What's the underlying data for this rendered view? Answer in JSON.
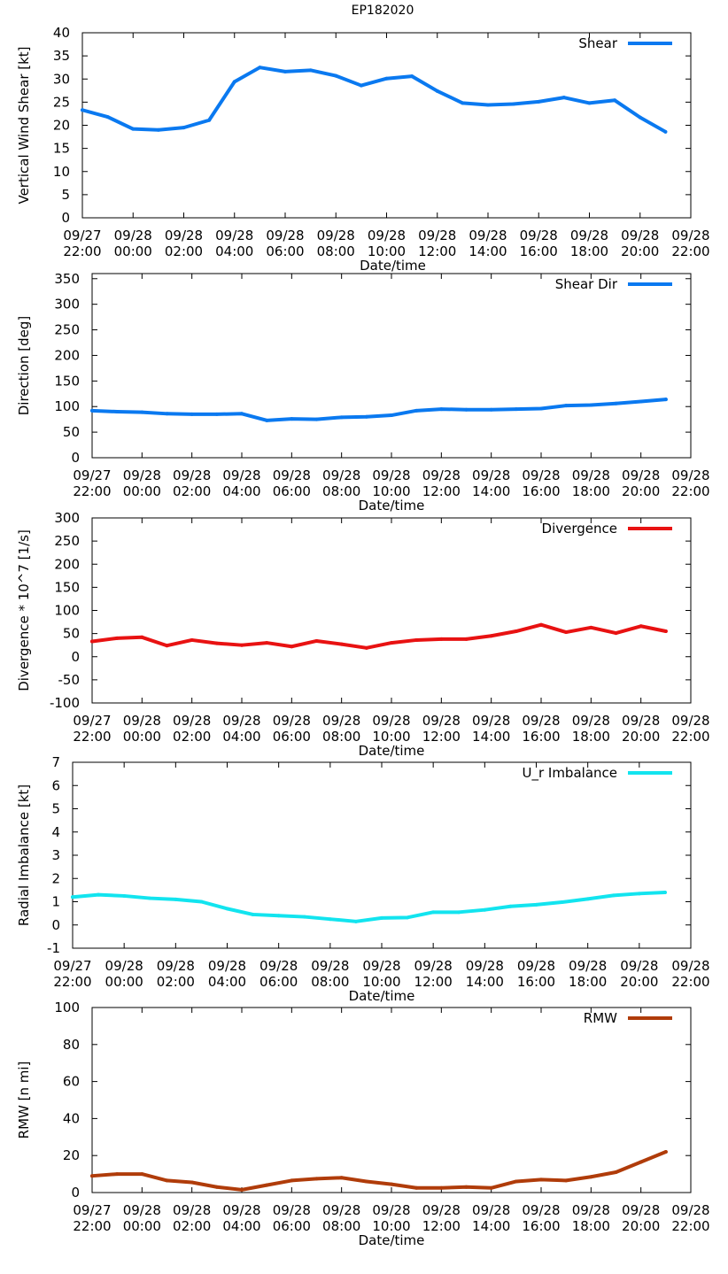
{
  "title": "EP182020",
  "colors": {
    "shear": "#0a79f0",
    "shear_dir": "#0a79f0",
    "divergence": "#e81212",
    "imbalance": "#12e4ef",
    "rmw": "#b03c0a"
  },
  "chart_data": [
    {
      "type": "line",
      "id": "shear",
      "ylabel": "Vertical Wind Shear [kt]",
      "xlabel": "Date/time",
      "ylim": [
        0,
        40
      ],
      "yticks": [
        0,
        5,
        10,
        15,
        20,
        25,
        30,
        35,
        40
      ],
      "xtick_labels": [
        [
          "09/27",
          "22:00"
        ],
        [
          "09/28",
          "00:00"
        ],
        [
          "09/28",
          "02:00"
        ],
        [
          "09/28",
          "04:00"
        ],
        [
          "09/28",
          "06:00"
        ],
        [
          "09/28",
          "08:00"
        ],
        [
          "09/28",
          "10:00"
        ],
        [
          "09/28",
          "12:00"
        ],
        [
          "09/28",
          "14:00"
        ],
        [
          "09/28",
          "16:00"
        ],
        [
          "09/28",
          "18:00"
        ],
        [
          "09/28",
          "20:00"
        ],
        [
          "09/28",
          "22:00"
        ]
      ],
      "xlim_hours": [
        0,
        24
      ],
      "series": [
        {
          "name": "Shear",
          "color_key": "shear",
          "x": [
            0,
            1,
            2,
            3,
            4,
            5,
            6,
            7,
            8,
            9,
            10,
            11,
            12,
            13,
            14,
            15,
            16,
            17,
            18,
            19,
            20,
            21,
            22,
            23
          ],
          "values": [
            23.3,
            21.8,
            19.2,
            19.0,
            19.5,
            21.1,
            29.4,
            32.5,
            31.6,
            31.9,
            30.7,
            28.6,
            30.1,
            30.6,
            27.4,
            24.8,
            24.4,
            24.6,
            25.1,
            26.0,
            24.8,
            25.4,
            21.7,
            18.6
          ]
        }
      ]
    },
    {
      "type": "line",
      "id": "shear_dir",
      "ylabel": "Direction [deg]",
      "xlabel": "Date/time",
      "ylim": [
        0,
        360
      ],
      "yticks": [
        0,
        50,
        100,
        150,
        200,
        250,
        300,
        350
      ],
      "xtick_labels": [
        [
          "09/27",
          "22:00"
        ],
        [
          "09/28",
          "00:00"
        ],
        [
          "09/28",
          "02:00"
        ],
        [
          "09/28",
          "04:00"
        ],
        [
          "09/28",
          "06:00"
        ],
        [
          "09/28",
          "08:00"
        ],
        [
          "09/28",
          "10:00"
        ],
        [
          "09/28",
          "12:00"
        ],
        [
          "09/28",
          "14:00"
        ],
        [
          "09/28",
          "16:00"
        ],
        [
          "09/28",
          "18:00"
        ],
        [
          "09/28",
          "20:00"
        ],
        [
          "09/28",
          "22:00"
        ]
      ],
      "xlim_hours": [
        0,
        24
      ],
      "series": [
        {
          "name": "Shear Dir",
          "color_key": "shear_dir",
          "x": [
            0,
            1,
            2,
            3,
            4,
            5,
            6,
            7,
            8,
            9,
            10,
            11,
            12,
            13,
            14,
            15,
            16,
            17,
            18,
            19,
            20,
            21,
            22,
            23
          ],
          "values": [
            92,
            90,
            89,
            86,
            85,
            85,
            86,
            73,
            76,
            75,
            79,
            80,
            83,
            92,
            95,
            94,
            94,
            95,
            96,
            102,
            103,
            106,
            110,
            114
          ]
        }
      ]
    },
    {
      "type": "line",
      "id": "divergence",
      "ylabel": "Divergence * 10^7 [1/s]",
      "xlabel": "Date/time",
      "ylim": [
        -100,
        300
      ],
      "yticks": [
        -100,
        -50,
        0,
        50,
        100,
        150,
        200,
        250,
        300
      ],
      "xtick_labels": [
        [
          "09/27",
          "22:00"
        ],
        [
          "09/28",
          "00:00"
        ],
        [
          "09/28",
          "02:00"
        ],
        [
          "09/28",
          "04:00"
        ],
        [
          "09/28",
          "06:00"
        ],
        [
          "09/28",
          "08:00"
        ],
        [
          "09/28",
          "10:00"
        ],
        [
          "09/28",
          "12:00"
        ],
        [
          "09/28",
          "14:00"
        ],
        [
          "09/28",
          "16:00"
        ],
        [
          "09/28",
          "18:00"
        ],
        [
          "09/28",
          "20:00"
        ],
        [
          "09/28",
          "22:00"
        ]
      ],
      "xlim_hours": [
        0,
        24
      ],
      "series": [
        {
          "name": "Divergence",
          "color_key": "divergence",
          "x": [
            0,
            1,
            2,
            3,
            4,
            5,
            6,
            7,
            8,
            9,
            10,
            11,
            12,
            13,
            14,
            15,
            16,
            17,
            18,
            19,
            20,
            21,
            22,
            23
          ],
          "values": [
            33,
            40,
            42,
            24,
            36,
            29,
            25,
            30,
            22,
            34,
            27,
            19,
            30,
            36,
            38,
            38,
            45,
            55,
            69,
            53,
            63,
            51,
            66,
            55
          ]
        }
      ]
    },
    {
      "type": "line",
      "id": "imbalance",
      "ylabel": "Radial Imbalance [kt]",
      "xlabel": "Date/time",
      "ylim": [
        -1,
        7
      ],
      "yticks": [
        -1,
        0,
        1,
        2,
        3,
        4,
        5,
        6,
        7
      ],
      "xtick_labels": [
        [
          "09/27",
          "22:00"
        ],
        [
          "09/28",
          "00:00"
        ],
        [
          "09/28",
          "02:00"
        ],
        [
          "09/28",
          "04:00"
        ],
        [
          "09/28",
          "06:00"
        ],
        [
          "09/28",
          "08:00"
        ],
        [
          "09/28",
          "10:00"
        ],
        [
          "09/28",
          "12:00"
        ],
        [
          "09/28",
          "14:00"
        ],
        [
          "09/28",
          "16:00"
        ],
        [
          "09/28",
          "18:00"
        ],
        [
          "09/28",
          "20:00"
        ],
        [
          "09/28",
          "22:00"
        ]
      ],
      "xlim_hours": [
        0,
        24
      ],
      "series": [
        {
          "name": "U_r Imbalance",
          "color_key": "imbalance",
          "x": [
            0,
            1,
            2,
            3,
            4,
            5,
            6,
            7,
            8,
            9,
            10,
            11,
            12,
            13,
            14,
            15,
            16,
            17,
            18,
            19,
            20,
            21,
            22,
            23
          ],
          "values": [
            1.2,
            1.3,
            1.25,
            1.15,
            1.1,
            1.0,
            0.7,
            0.45,
            0.4,
            0.35,
            0.25,
            0.15,
            0.3,
            0.32,
            0.55,
            0.55,
            0.65,
            0.8,
            0.87,
            0.98,
            1.12,
            1.27,
            1.35,
            1.4
          ]
        }
      ]
    },
    {
      "type": "line",
      "id": "rmw",
      "ylabel": "RMW [n mi]",
      "xlabel": "Date/time",
      "ylim": [
        0,
        100
      ],
      "yticks": [
        0,
        20,
        40,
        60,
        80,
        100
      ],
      "xtick_labels": [
        [
          "09/27",
          "22:00"
        ],
        [
          "09/28",
          "00:00"
        ],
        [
          "09/28",
          "02:00"
        ],
        [
          "09/28",
          "04:00"
        ],
        [
          "09/28",
          "06:00"
        ],
        [
          "09/28",
          "08:00"
        ],
        [
          "09/28",
          "10:00"
        ],
        [
          "09/28",
          "12:00"
        ],
        [
          "09/28",
          "14:00"
        ],
        [
          "09/28",
          "16:00"
        ],
        [
          "09/28",
          "18:00"
        ],
        [
          "09/28",
          "20:00"
        ],
        [
          "09/28",
          "22:00"
        ]
      ],
      "xlim_hours": [
        0,
        24
      ],
      "series": [
        {
          "name": "RMW",
          "color_key": "rmw",
          "x": [
            0,
            1,
            2,
            3,
            4,
            5,
            6,
            7,
            8,
            9,
            10,
            11,
            12,
            13,
            14,
            15,
            16,
            17,
            18,
            19,
            20,
            21,
            22,
            23
          ],
          "values": [
            9,
            10,
            10,
            6.5,
            5.5,
            3,
            1.5,
            4,
            6.5,
            7.5,
            8,
            6,
            4.5,
            2.5,
            2.5,
            3,
            2.5,
            6,
            7,
            6.5,
            8.5,
            11,
            16.5,
            22
          ]
        }
      ]
    }
  ]
}
